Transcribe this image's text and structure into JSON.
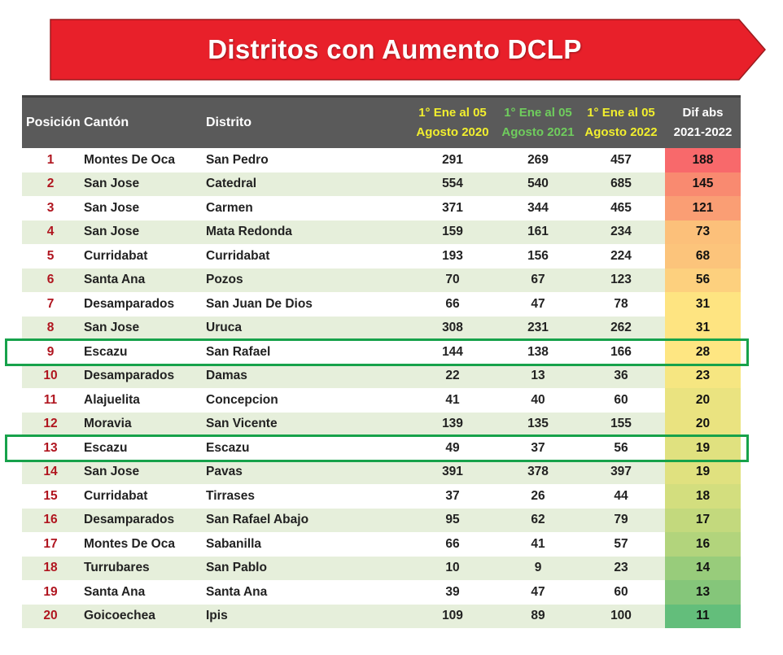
{
  "title": "Distritos con Aumento DCLP",
  "headers": {
    "posicion": "Posición",
    "canton": "Cantón",
    "distrito": "Distrito",
    "p2020": [
      "1° Ene al 05",
      "Agosto 2020"
    ],
    "p2021": [
      "1° Ene al 05",
      "Agosto 2021"
    ],
    "p2022": [
      "1° Ene al 05",
      "Agosto 2022"
    ],
    "dif": [
      "Dif abs",
      "2021-2022"
    ]
  },
  "colors": {
    "banner": "#e8202a",
    "header_bg": "#5a5a5a",
    "h2020": "#f2ef2e",
    "h2021": "#6fcd5d",
    "h2022": "#f2ef2e",
    "position_text": "#b0151f",
    "highlight": "#17a24b"
  },
  "rows": [
    {
      "pos": "1",
      "canton": "Montes De Oca",
      "distrito": "San Pedro",
      "y2020": "291",
      "y2021": "269",
      "y2022": "457",
      "dif": "188",
      "color": "#f8696b"
    },
    {
      "pos": "2",
      "canton": "San Jose",
      "distrito": "Catedral",
      "y2020": "554",
      "y2021": "540",
      "y2022": "685",
      "dif": "145",
      "color": "#f98a70"
    },
    {
      "pos": "3",
      "canton": "San Jose",
      "distrito": "Carmen",
      "y2020": "371",
      "y2021": "344",
      "y2022": "465",
      "dif": "121",
      "color": "#fa9e74"
    },
    {
      "pos": "4",
      "canton": "San Jose",
      "distrito": "Mata Redonda",
      "y2020": "159",
      "y2021": "161",
      "y2022": "234",
      "dif": "73",
      "color": "#fcc07a"
    },
    {
      "pos": "5",
      "canton": "Curridabat",
      "distrito": "Curridabat",
      "y2020": "193",
      "y2021": "156",
      "y2022": "224",
      "dif": "68",
      "color": "#fcc47b"
    },
    {
      "pos": "6",
      "canton": "Santa Ana",
      "distrito": "Pozos",
      "y2020": "70",
      "y2021": "67",
      "y2022": "123",
      "dif": "56",
      "color": "#fdd07e"
    },
    {
      "pos": "7",
      "canton": "Desamparados",
      "distrito": "San Juan De Dios",
      "y2020": "66",
      "y2021": "47",
      "y2022": "78",
      "dif": "31",
      "color": "#fee481"
    },
    {
      "pos": "8",
      "canton": "San Jose",
      "distrito": "Uruca",
      "y2020": "308",
      "y2021": "231",
      "y2022": "262",
      "dif": "31",
      "color": "#fee481"
    },
    {
      "pos": "9",
      "canton": "Escazu",
      "distrito": "San Rafael",
      "y2020": "144",
      "y2021": "138",
      "y2022": "166",
      "dif": "28",
      "color": "#fee682",
      "highlight": true
    },
    {
      "pos": "10",
      "canton": "Desamparados",
      "distrito": "Damas",
      "y2020": "22",
      "y2021": "13",
      "y2022": "36",
      "dif": "23",
      "color": "#f6e681"
    },
    {
      "pos": "11",
      "canton": "Alajuelita",
      "distrito": "Concepcion",
      "y2020": "41",
      "y2021": "40",
      "y2022": "60",
      "dif": "20",
      "color": "#eae380"
    },
    {
      "pos": "12",
      "canton": "Moravia",
      "distrito": "San Vicente",
      "y2020": "139",
      "y2021": "135",
      "y2022": "155",
      "dif": "20",
      "color": "#eae380"
    },
    {
      "pos": "13",
      "canton": "Escazu",
      "distrito": "Escazu",
      "y2020": "49",
      "y2021": "37",
      "y2022": "56",
      "dif": "19",
      "color": "#e0e17f",
      "highlight": true
    },
    {
      "pos": "14",
      "canton": "San Jose",
      "distrito": "Pavas",
      "y2020": "391",
      "y2021": "378",
      "y2022": "397",
      "dif": "19",
      "color": "#e0e17f"
    },
    {
      "pos": "15",
      "canton": "Curridabat",
      "distrito": "Tirrases",
      "y2020": "37",
      "y2021": "26",
      "y2022": "44",
      "dif": "18",
      "color": "#d3de7e"
    },
    {
      "pos": "16",
      "canton": "Desamparados",
      "distrito": "San Rafael Abajo",
      "y2020": "95",
      "y2021": "62",
      "y2022": "79",
      "dif": "17",
      "color": "#c3d97d"
    },
    {
      "pos": "17",
      "canton": "Montes De Oca",
      "distrito": "Sabanilla",
      "y2020": "66",
      "y2021": "41",
      "y2022": "57",
      "dif": "16",
      "color": "#b2d47c"
    },
    {
      "pos": "18",
      "canton": "Turrubares",
      "distrito": "San Pablo",
      "y2020": "10",
      "y2021": "9",
      "y2022": "23",
      "dif": "14",
      "color": "#98cc7b"
    },
    {
      "pos": "19",
      "canton": "Santa Ana",
      "distrito": "Santa Ana",
      "y2020": "39",
      "y2021": "47",
      "y2022": "60",
      "dif": "13",
      "color": "#85c67a"
    },
    {
      "pos": "20",
      "canton": "Goicoechea",
      "distrito": "Ipis",
      "y2020": "109",
      "y2021": "89",
      "y2022": "100",
      "dif": "11",
      "color": "#63be7b"
    }
  ]
}
